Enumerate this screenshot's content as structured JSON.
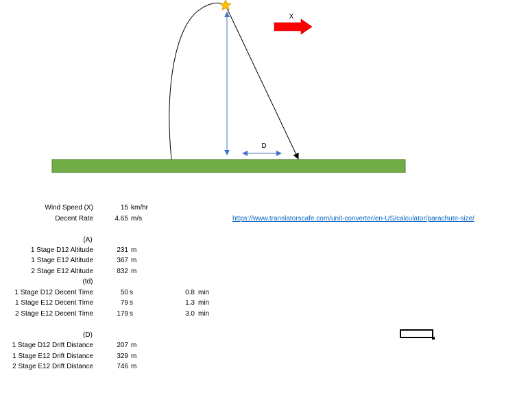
{
  "diagram": {
    "wind_label": "X",
    "drift_label": "D",
    "ground_color": "#70ad47",
    "ground_border": "#507e32",
    "arrow_color": "#ff0000",
    "dimension_color": "#4472c4",
    "apex_marker": "star-icon",
    "apex_color": "#ffc000"
  },
  "inputs": {
    "wind_speed_label": "Wind Speed (X)",
    "wind_speed_value": "15",
    "wind_speed_unit": "km/hr",
    "descent_rate_label": "Decent Rate",
    "descent_rate_value": "4.65",
    "descent_rate_unit": "m/s"
  },
  "reference_url": "https://www.translatorscafe.com/unit-converter/en-US/calculator/parachute-size/",
  "altitude_section": {
    "header": "(A)",
    "rows": [
      {
        "label": "1 Stage D12 Altitude",
        "value": "231",
        "unit": "m"
      },
      {
        "label": "1 Stage E12 Altitude",
        "value": "367",
        "unit": "m"
      },
      {
        "label": "2 Stage E12 Altitude",
        "value": "832",
        "unit": "m"
      }
    ]
  },
  "time_section": {
    "header": "(td)",
    "rows": [
      {
        "label": "1 Stage D12 Decent Time",
        "value": "50",
        "unit": "s",
        "minutes": "0.8",
        "minutes_unit": "min"
      },
      {
        "label": "1 Stage E12 Decent Time",
        "value": "79",
        "unit": "s",
        "minutes": "1.3",
        "minutes_unit": "min"
      },
      {
        "label": "2 Stage E12 Decent Time",
        "value": "179",
        "unit": "s",
        "minutes": "3.0",
        "minutes_unit": "min"
      }
    ]
  },
  "drift_section": {
    "header": "(D)",
    "rows": [
      {
        "label": "1 Stage D12 Drift Distance",
        "value": "207",
        "unit": "m"
      },
      {
        "label": "1 Stage E12 Drift Distance",
        "value": "329",
        "unit": "m"
      },
      {
        "label": "2 Stage E12 Drift Distance",
        "value": "746",
        "unit": "m"
      }
    ]
  }
}
